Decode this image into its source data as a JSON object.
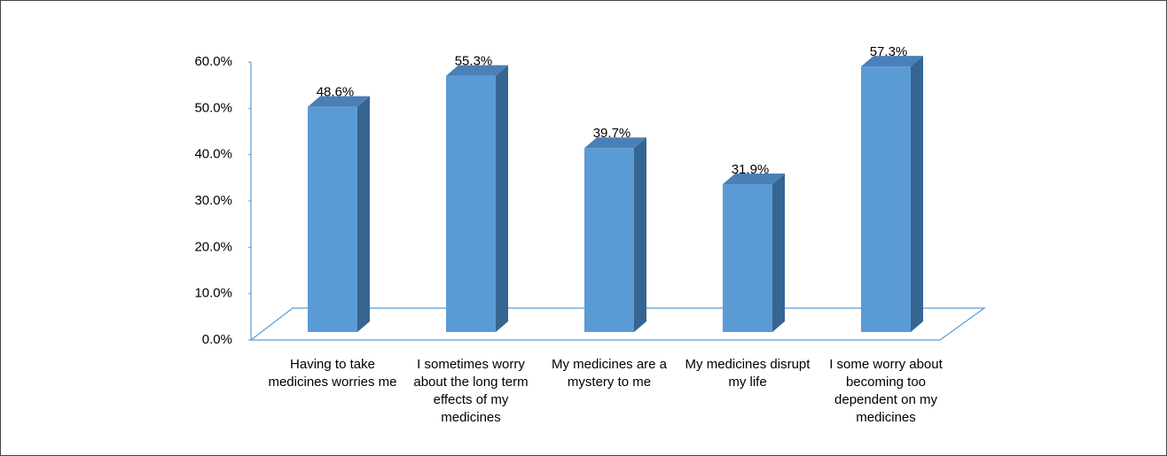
{
  "chart_data": {
    "type": "bar3d",
    "categories": [
      "Having to take medicines worries me",
      "I sometimes worry about the long term effects of my medicines",
      "My medicines are a mystery to me",
      "My medicines disrupt my life",
      "I some worry about becoming too dependent on my medicines"
    ],
    "values": [
      48.6,
      55.3,
      39.7,
      31.9,
      57.3
    ],
    "value_labels": [
      "48.6%",
      "55.3%",
      "39.7%",
      "31.9%",
      "57.3%"
    ],
    "color": "#5b9bd5",
    "ylim": [
      0,
      60
    ],
    "yticks": [
      {
        "value": 0,
        "label": "0.0%"
      },
      {
        "value": 10,
        "label": "10.0%"
      },
      {
        "value": 20,
        "label": "20.0%"
      },
      {
        "value": 30,
        "label": "30.0%"
      },
      {
        "value": 40,
        "label": "40.0%"
      },
      {
        "value": 50,
        "label": "50.0%"
      },
      {
        "value": 60,
        "label": "60.0%"
      }
    ]
  }
}
